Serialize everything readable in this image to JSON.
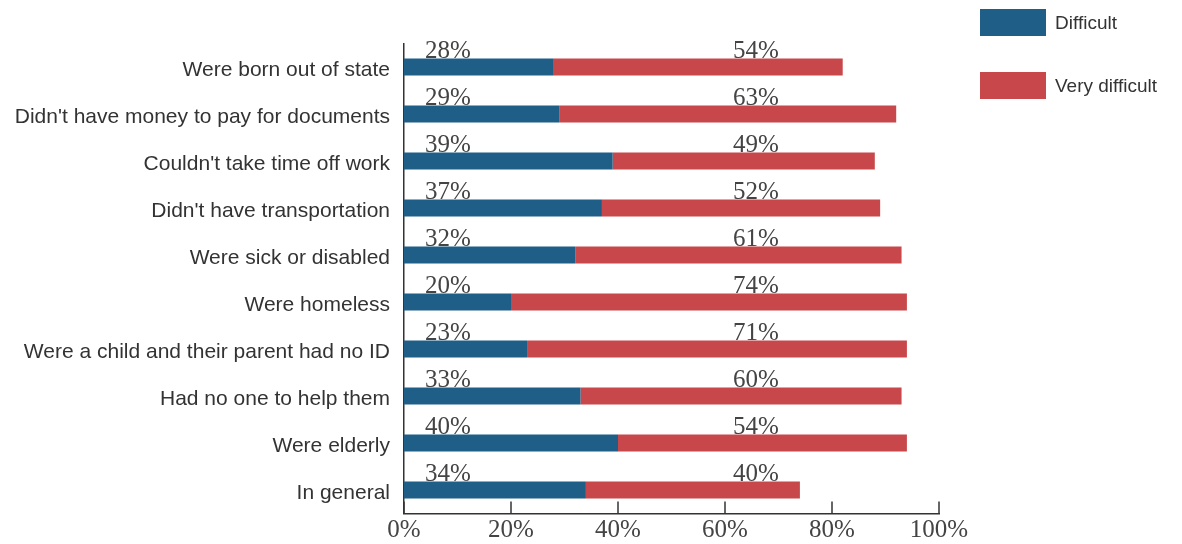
{
  "chart_data": {
    "type": "bar",
    "orientation": "horizontal",
    "stacked": true,
    "categories": [
      "Were born out of state",
      "Didn't have money to pay for documents",
      "Couldn't take time off work",
      "Didn't have transportation",
      "Were sick or disabled",
      "Were homeless",
      "Were a child and their parent had no ID",
      "Had no one to help them",
      "Were elderly",
      "In general"
    ],
    "series": [
      {
        "name": "Difficult",
        "color": "#1f5f87",
        "values": [
          28,
          29,
          39,
          37,
          32,
          20,
          23,
          33,
          40,
          34
        ],
        "value_labels": [
          "28%",
          "29%",
          "39%",
          "37%",
          "32%",
          "20%",
          "23%",
          "33%",
          "40%",
          "34%"
        ]
      },
      {
        "name": "Very difficult",
        "color": "#c8474a",
        "values": [
          54,
          63,
          49,
          52,
          61,
          74,
          71,
          60,
          54,
          40
        ],
        "value_labels": [
          "54%",
          "63%",
          "49%",
          "52%",
          "61%",
          "74%",
          "71%",
          "60%",
          "54%",
          "40%"
        ]
      }
    ],
    "xlim": [
      0,
      100
    ],
    "xticks": [
      {
        "value": 0,
        "label": "0%"
      },
      {
        "value": 20,
        "label": "20%"
      },
      {
        "value": 40,
        "label": "40%"
      },
      {
        "value": 60,
        "label": "60%"
      },
      {
        "value": 80,
        "label": "80%"
      },
      {
        "value": 100,
        "label": "100%"
      }
    ],
    "legend": "top right"
  }
}
